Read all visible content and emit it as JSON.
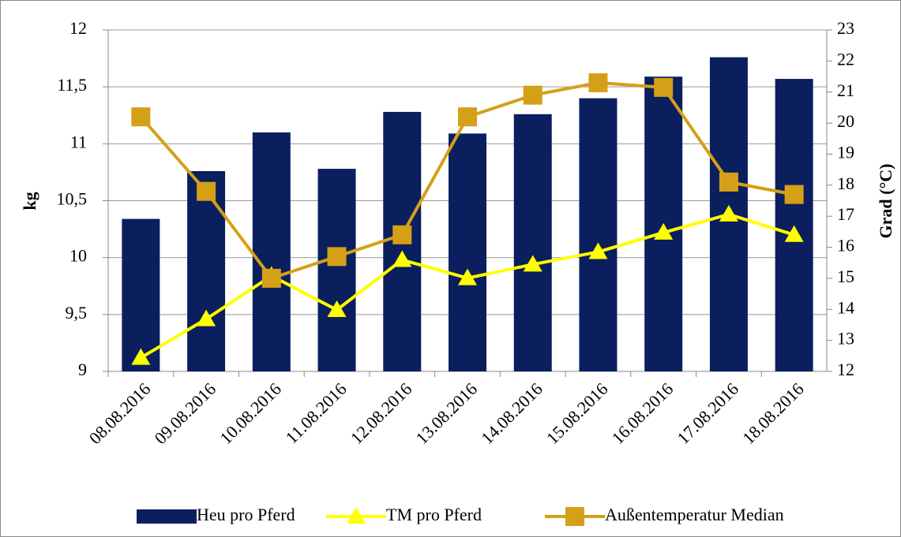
{
  "chart_data": {
    "type": "bar",
    "categories": [
      "08.08.2016",
      "09.08.2016",
      "10.08.2016",
      "11.08.2016",
      "12.08.2016",
      "13.08.2016",
      "14.08.2016",
      "15.08.2016",
      "16.08.2016",
      "17.08.2016",
      "18.08.2016"
    ],
    "series": [
      {
        "name": "Heu pro Pferd",
        "type": "bar",
        "color": "#0b1f5e",
        "values": [
          10.34,
          10.76,
          11.1,
          10.78,
          11.28,
          11.09,
          11.26,
          11.4,
          11.59,
          11.76,
          11.57
        ]
      },
      {
        "name": "TM pro Pferd",
        "type": "line",
        "marker": "triangle",
        "color": "#ffff00",
        "values": [
          9.12,
          9.46,
          9.84,
          9.54,
          9.98,
          9.82,
          9.94,
          10.05,
          10.22,
          10.38,
          10.2
        ]
      },
      {
        "name": "Außentemperatur Median",
        "type": "line",
        "marker": "square",
        "axis": "y2",
        "color": "#d4a017",
        "values": [
          20.2,
          17.8,
          15.0,
          15.7,
          16.4,
          20.2,
          20.9,
          21.3,
          21.15,
          18.1,
          17.7
        ]
      }
    ],
    "ylabel": "kg",
    "y2label": "Grad (°C)",
    "ylim": [
      9,
      12
    ],
    "yticks": [
      9,
      {
        "value": 9.5,
        "label": "9,5"
      },
      10,
      {
        "value": 10.5,
        "label": "10,5"
      },
      11,
      {
        "value": 11.5,
        "label": "11,5"
      },
      12
    ],
    "y2lim": [
      12,
      23
    ],
    "y2ticks": [
      12,
      13,
      14,
      15,
      16,
      17,
      18,
      19,
      20,
      21,
      22,
      23
    ],
    "grid": true,
    "legend": "bottom"
  }
}
